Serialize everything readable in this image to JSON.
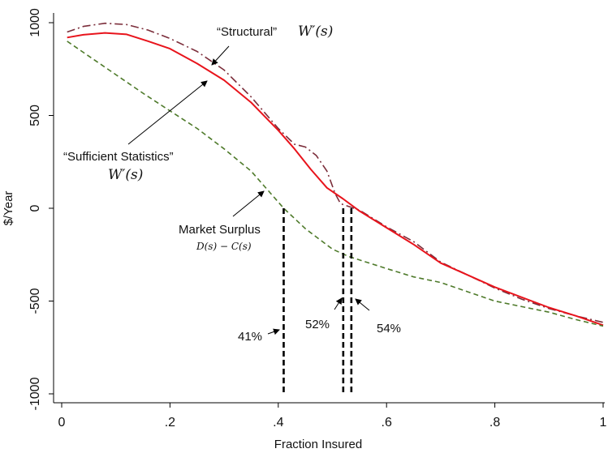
{
  "chart_data": {
    "type": "line",
    "title": "",
    "xlabel": "Fraction Insured",
    "ylabel": "$/Year",
    "xlim": [
      0,
      1
    ],
    "ylim": [
      -1000,
      1000
    ],
    "x_ticks": [
      {
        "value": 0,
        "label": "0"
      },
      {
        "value": 0.2,
        "label": ".2"
      },
      {
        "value": 0.4,
        "label": ".4"
      },
      {
        "value": 0.6,
        "label": ".6"
      },
      {
        "value": 0.8,
        "label": ".8"
      },
      {
        "value": 1,
        "label": "1"
      }
    ],
    "y_ticks": [
      {
        "value": 1000,
        "label": "1000"
      },
      {
        "value": 500,
        "label": "500"
      },
      {
        "value": 0,
        "label": "0"
      },
      {
        "value": -500,
        "label": "-500"
      },
      {
        "value": -1000,
        "label": "-1000"
      }
    ],
    "grid": false,
    "series": [
      {
        "key": "structural",
        "color": "#7b2d3a",
        "style": "dash-dot",
        "points": [
          [
            0.01,
            950
          ],
          [
            0.04,
            980
          ],
          [
            0.08,
            997
          ],
          [
            0.12,
            990
          ],
          [
            0.16,
            960
          ],
          [
            0.2,
            915
          ],
          [
            0.25,
            845
          ],
          [
            0.3,
            745
          ],
          [
            0.35,
            600
          ],
          [
            0.4,
            430
          ],
          [
            0.43,
            345
          ],
          [
            0.45,
            330
          ],
          [
            0.47,
            285
          ],
          [
            0.49,
            200
          ],
          [
            0.505,
            80
          ],
          [
            0.515,
            25
          ],
          [
            0.53,
            10
          ],
          [
            0.55,
            -10
          ],
          [
            0.6,
            -100
          ],
          [
            0.65,
            -180
          ],
          [
            0.7,
            -290
          ],
          [
            0.75,
            -360
          ],
          [
            0.8,
            -430
          ],
          [
            0.85,
            -490
          ],
          [
            0.9,
            -540
          ],
          [
            0.95,
            -580
          ],
          [
            1.0,
            -615
          ]
        ]
      },
      {
        "key": "sufficient",
        "color": "#e8141c",
        "style": "solid",
        "points": [
          [
            0.01,
            920
          ],
          [
            0.04,
            935
          ],
          [
            0.08,
            945
          ],
          [
            0.12,
            937
          ],
          [
            0.16,
            900
          ],
          [
            0.2,
            860
          ],
          [
            0.25,
            780
          ],
          [
            0.3,
            690
          ],
          [
            0.35,
            570
          ],
          [
            0.4,
            420
          ],
          [
            0.43,
            320
          ],
          [
            0.46,
            210
          ],
          [
            0.49,
            110
          ],
          [
            0.52,
            50
          ],
          [
            0.55,
            -15
          ],
          [
            0.6,
            -105
          ],
          [
            0.65,
            -195
          ],
          [
            0.7,
            -295
          ],
          [
            0.75,
            -360
          ],
          [
            0.8,
            -425
          ],
          [
            0.85,
            -480
          ],
          [
            0.9,
            -535
          ],
          [
            0.95,
            -580
          ],
          [
            1.0,
            -630
          ]
        ]
      },
      {
        "key": "market",
        "color": "#4e7a2a",
        "style": "dashed",
        "points": [
          [
            0.01,
            900
          ],
          [
            0.05,
            820
          ],
          [
            0.1,
            720
          ],
          [
            0.15,
            620
          ],
          [
            0.2,
            525
          ],
          [
            0.25,
            430
          ],
          [
            0.3,
            320
          ],
          [
            0.35,
            200
          ],
          [
            0.41,
            0
          ],
          [
            0.45,
            -110
          ],
          [
            0.5,
            -220
          ],
          [
            0.53,
            -260
          ],
          [
            0.6,
            -325
          ],
          [
            0.65,
            -370
          ],
          [
            0.7,
            -400
          ],
          [
            0.75,
            -450
          ],
          [
            0.8,
            -500
          ],
          [
            0.85,
            -530
          ],
          [
            0.9,
            -560
          ],
          [
            0.95,
            -600
          ],
          [
            1.0,
            -635
          ]
        ]
      }
    ],
    "vlines": [
      {
        "x": 0.41,
        "from": 0,
        "to": -1000,
        "label": "41%"
      },
      {
        "x": 0.52,
        "from": 0,
        "to": -1000,
        "label": "52%"
      },
      {
        "x": 0.535,
        "from": 0,
        "to": -1000,
        "label": "54%"
      }
    ],
    "annotations": {
      "structural_quote": "“Structural”",
      "structural_math": "W′(s)",
      "sufficient_quote": "“Sufficient Statistics”",
      "sufficient_math": "W′(s)",
      "market_label": "Market Surplus",
      "market_math": "D(s) − C(s)"
    }
  }
}
